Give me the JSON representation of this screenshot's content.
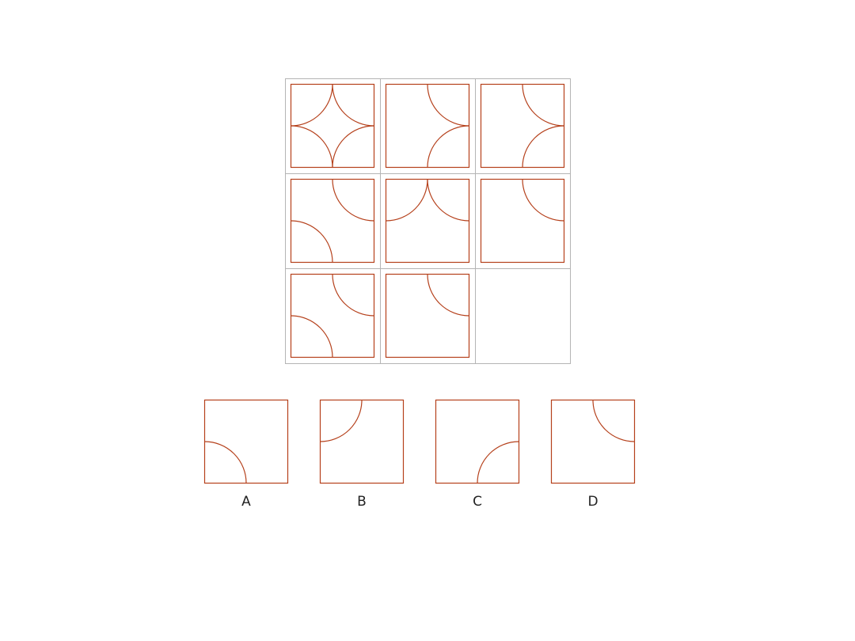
{
  "colors": {
    "grid_line": "#b4b4b4",
    "shape_stroke": "#b5401b",
    "background": "#ffffff",
    "label_text": "#222222"
  },
  "matrix": {
    "rows": 3,
    "cols": 3,
    "cells": [
      {
        "arcs": [
          "top-left",
          "top-right",
          "bottom-left",
          "bottom-right"
        ]
      },
      {
        "arcs": [
          "top-right",
          "bottom-right"
        ]
      },
      {
        "arcs": [
          "top-right",
          "bottom-right"
        ]
      },
      {
        "arcs": [
          "top-right",
          "bottom-left"
        ]
      },
      {
        "arcs": [
          "top-left",
          "top-right"
        ]
      },
      {
        "arcs": [
          "top-right"
        ]
      },
      {
        "arcs": [
          "top-right",
          "bottom-left"
        ]
      },
      {
        "arcs": [
          "top-right"
        ]
      },
      {
        "arcs": [],
        "missing": true
      }
    ]
  },
  "options": [
    {
      "label": "A",
      "arcs": [
        "bottom-left"
      ]
    },
    {
      "label": "B",
      "arcs": [
        "top-left"
      ]
    },
    {
      "label": "C",
      "arcs": [
        "bottom-right"
      ]
    },
    {
      "label": "D",
      "arcs": [
        "top-right"
      ]
    }
  ]
}
